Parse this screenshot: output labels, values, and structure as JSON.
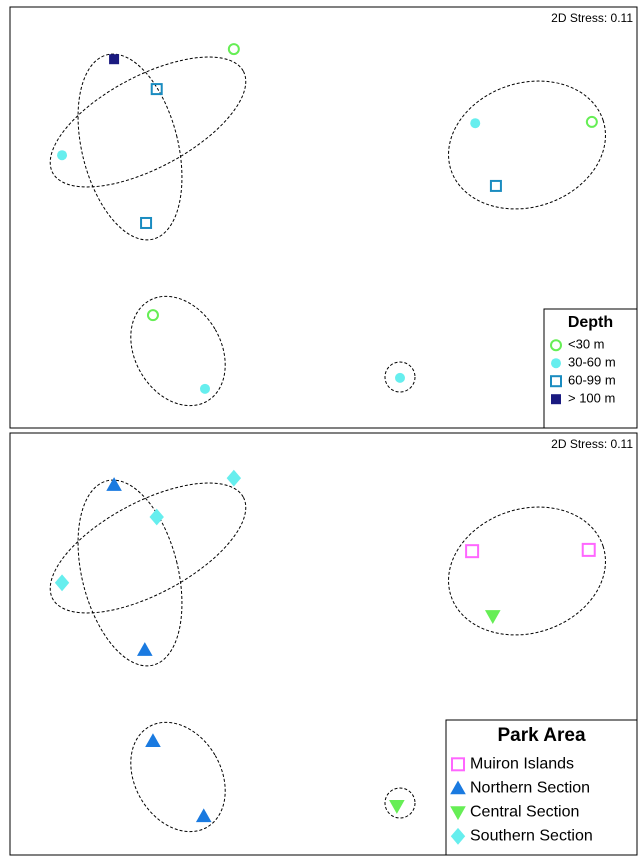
{
  "chart_data": [
    {
      "type": "scatter",
      "annotation": "2D Stress: 0.11",
      "legend_title": "Depth",
      "legend": "lower right",
      "xlim": [
        0,
        100
      ],
      "ylim": [
        0,
        100
      ],
      "series": [
        {
          "name": "<30 m",
          "color": "#66ee55",
          "marker": "circle-open",
          "x": [
            35.7,
            92.8,
            22.8
          ],
          "y": [
            90.0,
            72.7,
            26.8
          ]
        },
        {
          "name": "30-60 m",
          "color": "#66eeee",
          "marker": "circle",
          "x": [
            8.3,
            74.2,
            31.1,
            62.2
          ],
          "y": [
            64.8,
            72.4,
            9.3,
            11.9
          ]
        },
        {
          "name": "60-99 m",
          "color": "#1a8cc0",
          "marker": "square-open",
          "x": [
            23.4,
            21.7,
            77.5
          ],
          "y": [
            80.5,
            48.7,
            57.5
          ]
        },
        {
          "name": "> 100 m",
          "color": "#1a1a80",
          "marker": "square",
          "x": [
            16.6
          ],
          "y": [
            87.6
          ]
        }
      ]
    },
    {
      "type": "scatter",
      "annotation": "2D Stress: 0.11",
      "legend_title": "Park Area",
      "legend": "lower right",
      "xlim": [
        0,
        100
      ],
      "ylim": [
        0,
        100
      ],
      "series": [
        {
          "name": "Muiron Islands",
          "color": "#ff66ff",
          "marker": "square-open",
          "x": [
            73.7,
            92.3
          ],
          "y": [
            72.0,
            72.3
          ]
        },
        {
          "name": "Northern Section",
          "color": "#1a7ae0",
          "marker": "triangle",
          "x": [
            16.6,
            21.5,
            22.8,
            30.9
          ],
          "y": [
            87.7,
            48.6,
            27.0,
            9.2
          ]
        },
        {
          "name": "Central Section",
          "color": "#66ee55",
          "marker": "triangle-down",
          "x": [
            77.0,
            61.7
          ],
          "y": [
            56.6,
            11.6
          ]
        },
        {
          "name": "Southern Section",
          "color": "#66eeee",
          "marker": "diamond",
          "x": [
            35.7,
            23.4,
            8.3
          ],
          "y": [
            89.3,
            80.1,
            64.5
          ]
        }
      ]
    }
  ]
}
